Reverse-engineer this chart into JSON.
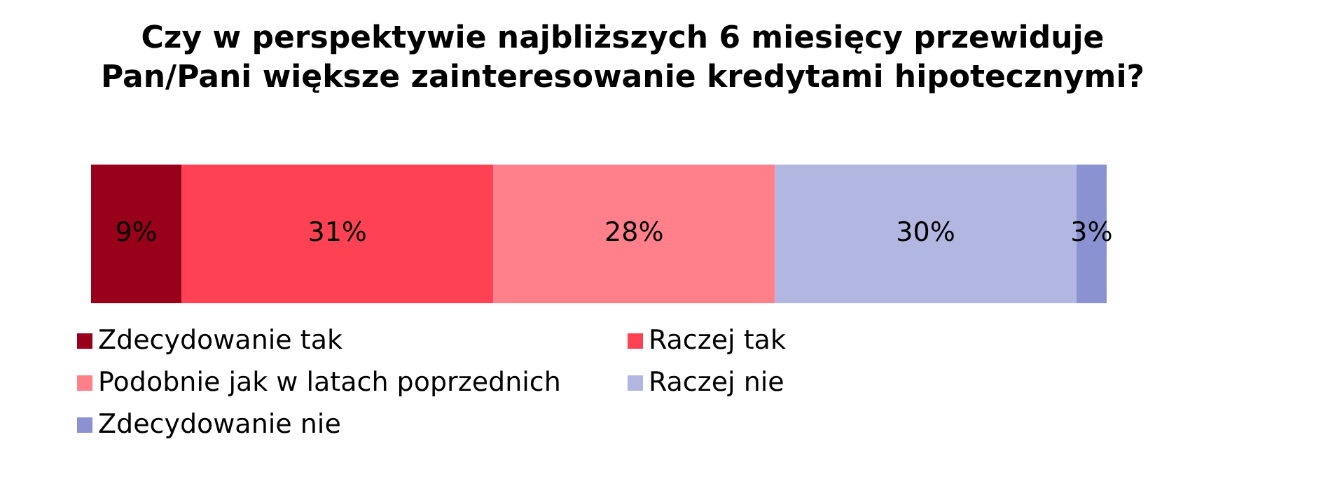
{
  "chart_data": {
    "type": "bar",
    "title": "Czy w perspektywie najbliższych 6 miesięcy przewiduje Pan/Pani większe zainteresowanie kredytami hipotecznymi?",
    "orientation": "horizontal",
    "stacked": true,
    "tick_labels": false,
    "categories": [
      null
    ],
    "legend": "bottom left",
    "series": [
      {
        "name": "Zdecydowanie tak",
        "color": "#99001a",
        "values": [
          9
        ],
        "value_labels": [
          "9%"
        ]
      },
      {
        "name": "Raczej tak",
        "color": "#ff4253",
        "values": [
          31
        ],
        "value_labels": [
          "31%"
        ]
      },
      {
        "name": "Podobnie jak w latach poprzednich",
        "color": "#ff7f8b",
        "values": [
          28
        ],
        "value_labels": [
          "28%"
        ]
      },
      {
        "name": "Raczej nie",
        "color": "#b1b7e0",
        "values": [
          30
        ],
        "value_labels": [
          "30%"
        ]
      },
      {
        "name": "Zdecydowanie nie",
        "color": "#8a92d2",
        "values": [
          3
        ],
        "value_labels": [
          "3%"
        ]
      }
    ]
  }
}
